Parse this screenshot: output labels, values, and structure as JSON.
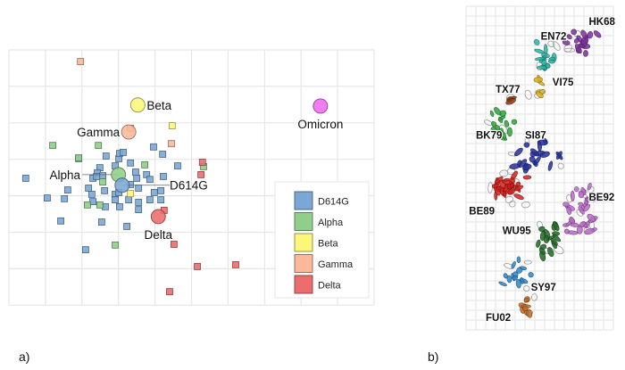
{
  "captions": {
    "a": "a)",
    "b": "b)"
  },
  "chart_data": [
    {
      "panel": "a",
      "type": "scatter",
      "title": "",
      "xlabel": "",
      "ylabel": "",
      "grid": true,
      "xlim": [
        0,
        10
      ],
      "ylim": [
        0,
        7
      ],
      "y_direction": "down",
      "units": "antigenic map grid units",
      "legend": {
        "placement": "bottom-right",
        "entries": [
          {
            "name": "D614G",
            "color": "#7ba7d4"
          },
          {
            "name": "Alpha",
            "color": "#8fcf8a"
          },
          {
            "name": "Beta",
            "color": "#fbf77a"
          },
          {
            "name": "Gamma",
            "color": "#fbb89a"
          },
          {
            "name": "Delta",
            "color": "#ec6d6d"
          }
        ]
      },
      "antigens": [
        {
          "name": "Beta",
          "x": 3.53,
          "y": 1.51,
          "color": "#fbf77a",
          "label_side": "right"
        },
        {
          "name": "Gamma",
          "x": 3.28,
          "y": 2.25,
          "color": "#fbb89a",
          "label_side": "left"
        },
        {
          "name": "Omicron",
          "x": 8.53,
          "y": 1.54,
          "color": "#f06af0",
          "label_side": "below"
        },
        {
          "name": "Alpha",
          "x": 3.0,
          "y": 3.42,
          "color": "#8fcf8a",
          "label_side": "left-leader"
        },
        {
          "name": "D614G",
          "x": 3.1,
          "y": 3.71,
          "color": "#7ba7d4",
          "label_side": "right-leader"
        },
        {
          "name": "Delta",
          "x": 4.09,
          "y": 4.57,
          "color": "#ec6d6d",
          "label_side": "below"
        }
      ],
      "sera": [
        {
          "group": "D614G",
          "color": "#7ba7d4",
          "points": [
            [
              0.46,
              3.52
            ],
            [
              1.05,
              4.06
            ],
            [
              1.52,
              4.08
            ],
            [
              1.61,
              3.84
            ],
            [
              1.42,
              4.69
            ],
            [
              2.1,
              5.48
            ],
            [
              2.54,
              4.72
            ],
            [
              1.91,
              2.98
            ],
            [
              2.66,
              2.91
            ],
            [
              3.01,
              2.98
            ],
            [
              3.03,
              2.84
            ],
            [
              3.13,
              2.81
            ],
            [
              3.33,
              3.1
            ],
            [
              3.96,
              2.66
            ],
            [
              4.21,
              2.86
            ],
            [
              4.62,
              3.18
            ],
            [
              2.49,
              3.23
            ],
            [
              2.91,
              3.18
            ],
            [
              2.42,
              3.37
            ],
            [
              2.3,
              3.52
            ],
            [
              2.18,
              3.79
            ],
            [
              2.27,
              3.96
            ],
            [
              2.3,
              4.16
            ],
            [
              2.64,
              4.3
            ],
            [
              2.62,
              3.86
            ],
            [
              2.91,
              3.96
            ],
            [
              2.91,
              4.11
            ],
            [
              3.01,
              3.91
            ],
            [
              3.03,
              4.3
            ],
            [
              3.28,
              4.11
            ],
            [
              3.33,
              3.69
            ],
            [
              3.47,
              3.35
            ],
            [
              3.5,
              3.52
            ],
            [
              3.55,
              3.79
            ],
            [
              3.55,
              4.18
            ],
            [
              3.55,
              4.38
            ],
            [
              3.77,
              3.42
            ],
            [
              3.86,
              3.55
            ],
            [
              3.86,
              4.11
            ],
            [
              3.98,
              3.91
            ],
            [
              4.16,
              3.86
            ],
            [
              4.16,
              4.11
            ],
            [
              4.23,
              3.47
            ],
            [
              3.23,
              4.84
            ],
            [
              2.57,
              3.45
            ],
            [
              2.4,
              3.47
            ]
          ]
        },
        {
          "group": "Alpha",
          "color": "#8fcf8a",
          "points": [
            [
              1.2,
              2.62
            ],
            [
              2.45,
              2.62
            ],
            [
              3.72,
              3.15
            ],
            [
              5.33,
              3.2
            ],
            [
              2.15,
              4.25
            ],
            [
              2.49,
              4.25
            ],
            [
              2.91,
              5.35
            ],
            [
              2.57,
              3.62
            ],
            [
              1.91,
              2.96
            ]
          ]
        },
        {
          "group": "Beta",
          "color": "#fbf77a",
          "points": [
            [
              4.47,
              2.08
            ],
            [
              3.33,
              3.94
            ]
          ]
        },
        {
          "group": "Gamma",
          "color": "#fbb89a",
          "points": [
            [
              1.96,
              0.32
            ],
            [
              4.45,
              2.57
            ],
            [
              3.33,
              2.15
            ]
          ]
        },
        {
          "group": "Delta",
          "color": "#ec6d6d",
          "points": [
            [
              5.3,
              3.08
            ],
            [
              5.26,
              3.42
            ],
            [
              4.25,
              4.4
            ],
            [
              4.52,
              5.33
            ],
            [
              5.16,
              5.94
            ],
            [
              6.21,
              5.89
            ],
            [
              4.4,
              6.63
            ]
          ]
        }
      ]
    },
    {
      "panel": "b",
      "type": "scatter",
      "title": "",
      "grid": true,
      "xlim": [
        0,
        15
      ],
      "ylim": [
        0,
        33
      ],
      "y_direction": "down",
      "units": "antigenic map grid units",
      "clusters": [
        {
          "name": "HK68",
          "color": "#7a2f9a",
          "label": [
            12.5,
            1.0
          ],
          "center": [
            11.9,
            3.6
          ],
          "spread": [
            1.3,
            1.0
          ],
          "count": 16
        },
        {
          "name": "EN72",
          "color": "#2bb3a5",
          "label": [
            7.6,
            2.5
          ],
          "center": [
            8.1,
            5.0
          ],
          "spread": [
            1.1,
            1.3
          ],
          "count": 16
        },
        {
          "name": "VI75",
          "color": "#d8b020",
          "label": [
            8.8,
            7.2
          ],
          "center": [
            7.6,
            8.4
          ],
          "spread": [
            0.4,
            0.9
          ],
          "count": 6
        },
        {
          "name": "TX77",
          "color": "#8b3a12",
          "label": [
            3.0,
            7.9
          ],
          "center": [
            4.8,
            9.5
          ],
          "spread": [
            1.2,
            0.4
          ],
          "count": 3
        },
        {
          "name": "BK79",
          "color": "#2ea33a",
          "label": [
            1.0,
            12.6
          ],
          "center": [
            3.6,
            12.0
          ],
          "spread": [
            1.5,
            1.3
          ],
          "count": 14
        },
        {
          "name": "SI87",
          "color": "#25309a",
          "label": [
            6.0,
            12.6
          ],
          "center": [
            7.0,
            15.6
          ],
          "spread": [
            2.2,
            1.9
          ],
          "count": 20
        },
        {
          "name": "BE89",
          "color": "#d0201c",
          "label": [
            0.3,
            20.3
          ],
          "center": [
            4.4,
            18.7
          ],
          "spread": [
            1.5,
            1.3
          ],
          "count": 30
        },
        {
          "name": "BE92",
          "color": "#b868c8",
          "label": [
            12.5,
            18.9
          ],
          "center": [
            11.6,
            20.6
          ],
          "spread": [
            1.6,
            1.9
          ],
          "count": 32
        },
        {
          "name": "WU95",
          "color": "#1e6a24",
          "label": [
            3.7,
            22.3
          ],
          "center": [
            8.3,
            23.6
          ],
          "spread": [
            1.2,
            1.5
          ],
          "count": 16
        },
        {
          "name": "SY97",
          "color": "#2a86c8",
          "label": [
            6.6,
            28.1
          ],
          "center": [
            5.2,
            27.3
          ],
          "spread": [
            1.1,
            1.2
          ],
          "count": 14
        },
        {
          "name": "FU02",
          "color": "#c06a24",
          "label": [
            2.0,
            31.2
          ],
          "center": [
            6.1,
            30.8
          ],
          "spread": [
            0.9,
            0.9
          ],
          "count": 8
        }
      ]
    }
  ]
}
